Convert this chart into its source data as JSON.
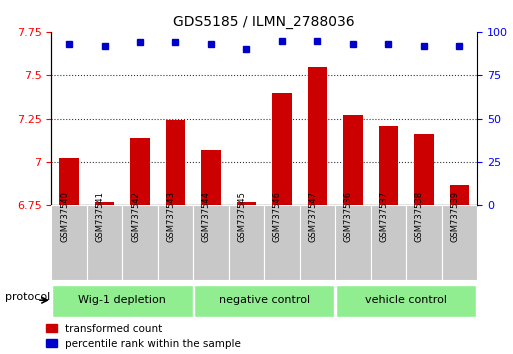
{
  "title": "GDS5185 / ILMN_2788036",
  "samples": [
    "GSM737540",
    "GSM737541",
    "GSM737542",
    "GSM737543",
    "GSM737544",
    "GSM737545",
    "GSM737546",
    "GSM737547",
    "GSM737536",
    "GSM737537",
    "GSM737538",
    "GSM737539"
  ],
  "red_values": [
    7.02,
    6.77,
    7.14,
    7.24,
    7.07,
    6.77,
    7.4,
    7.55,
    7.27,
    7.21,
    7.16,
    6.87
  ],
  "blue_values": [
    93,
    92,
    94,
    94,
    93,
    90,
    95,
    95,
    93,
    93,
    92,
    92
  ],
  "groups": [
    {
      "label": "Wig-1 depletion",
      "start": 0,
      "end": 4
    },
    {
      "label": "negative control",
      "start": 4,
      "end": 8
    },
    {
      "label": "vehicle control",
      "start": 8,
      "end": 12
    }
  ],
  "ylim_left": [
    6.75,
    7.75
  ],
  "ylim_right": [
    0,
    100
  ],
  "yticks_left": [
    6.75,
    7.0,
    7.25,
    7.5,
    7.75
  ],
  "yticks_right": [
    0,
    25,
    50,
    75,
    100
  ],
  "bar_color": "#cc0000",
  "dot_color": "#0000cc",
  "group_bg_color": "#90ee90",
  "tick_label_bg": "#c8c8c8",
  "protocol_label": "protocol",
  "legend_red": "transformed count",
  "legend_blue": "percentile rank within the sample",
  "grid_lines": [
    7.0,
    7.25,
    7.5
  ],
  "figsize": [
    5.13,
    3.54
  ],
  "dpi": 100
}
